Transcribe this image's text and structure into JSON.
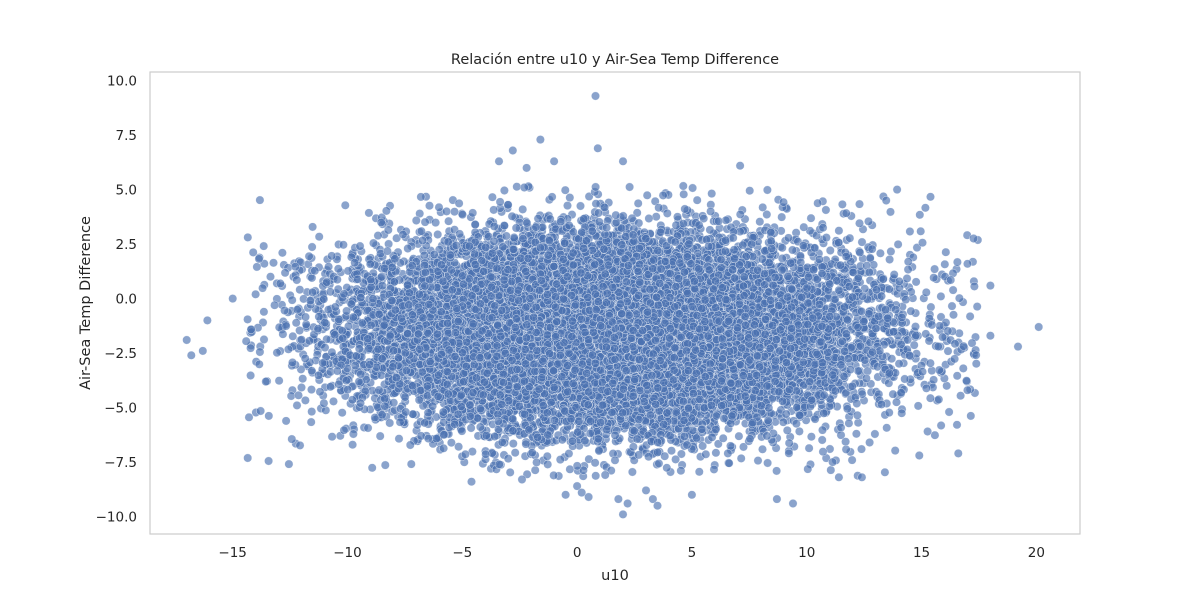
{
  "chart_data": {
    "type": "scatter",
    "title": "Relación entre u10 y Air-Sea Temp Difference",
    "xlabel": "u10",
    "ylabel": "Air-Sea Temp Difference",
    "xlim": [
      -18.6,
      21.9
    ],
    "ylim": [
      -10.8,
      10.4
    ],
    "xticks": [
      -15,
      -10,
      -5,
      0,
      5,
      10,
      15,
      20
    ],
    "xtick_labels": [
      "−15",
      "−10",
      "−5",
      "0",
      "5",
      "10",
      "15",
      "20"
    ],
    "yticks": [
      -10,
      -7.5,
      -5,
      -2.5,
      0,
      2.5,
      5,
      7.5,
      10
    ],
    "ytick_labels": [
      "−10.0",
      "−7.5",
      "−5.0",
      "−2.5",
      "0.0",
      "2.5",
      "5.0",
      "7.5",
      "10.0"
    ],
    "grid": false,
    "legend": "none",
    "point_color": "#4c72b0",
    "point_alpha": 0.65,
    "point_edge_color": "#ffffff",
    "distribution": {
      "n": 16000,
      "x_mean": 1.5,
      "x_std": 5.6,
      "y_mean": -1.6,
      "y_std": 2.25
    },
    "notable_points": [
      {
        "x": -17.0,
        "y": -1.9
      },
      {
        "x": -16.8,
        "y": -2.6
      },
      {
        "x": -16.3,
        "y": -2.4
      },
      {
        "x": -16.1,
        "y": -1.0
      },
      {
        "x": -15.0,
        "y": 0.0
      },
      {
        "x": -14.0,
        "y": 0.2
      },
      {
        "x": -12.2,
        "y": -4.9
      },
      {
        "x": -4.6,
        "y": -8.4
      },
      {
        "x": -2.4,
        "y": -8.3
      },
      {
        "x": -3.4,
        "y": 6.3
      },
      {
        "x": -2.8,
        "y": 6.8
      },
      {
        "x": -2.2,
        "y": 6.0
      },
      {
        "x": -2.3,
        "y": 5.1
      },
      {
        "x": -1.6,
        "y": 7.3
      },
      {
        "x": -1.0,
        "y": 6.3
      },
      {
        "x": 0.8,
        "y": 9.3
      },
      {
        "x": 0.9,
        "y": 6.9
      },
      {
        "x": 2.0,
        "y": 6.3
      },
      {
        "x": 7.1,
        "y": 6.1
      },
      {
        "x": -0.5,
        "y": -9.0
      },
      {
        "x": 0.0,
        "y": -8.6
      },
      {
        "x": 0.2,
        "y": -8.9
      },
      {
        "x": 0.5,
        "y": -9.1
      },
      {
        "x": 1.8,
        "y": -9.2
      },
      {
        "x": 2.0,
        "y": -9.9
      },
      {
        "x": 2.2,
        "y": -9.4
      },
      {
        "x": 3.0,
        "y": -8.8
      },
      {
        "x": 3.3,
        "y": -9.2
      },
      {
        "x": 3.5,
        "y": -9.5
      },
      {
        "x": 5.0,
        "y": -9.0
      },
      {
        "x": 8.7,
        "y": -9.2
      },
      {
        "x": 9.4,
        "y": -9.4
      },
      {
        "x": 11.4,
        "y": -8.2
      },
      {
        "x": 12.4,
        "y": -8.2
      },
      {
        "x": 14.9,
        "y": -7.2
      },
      {
        "x": 16.6,
        "y": -7.1
      },
      {
        "x": 16.2,
        "y": -5.2
      },
      {
        "x": 17.0,
        "y": -4.2
      },
      {
        "x": 17.0,
        "y": 1.6
      },
      {
        "x": 18.0,
        "y": 0.6
      },
      {
        "x": 18.0,
        "y": -1.7
      },
      {
        "x": 19.2,
        "y": -2.2
      },
      {
        "x": 20.1,
        "y": -1.3
      }
    ]
  }
}
